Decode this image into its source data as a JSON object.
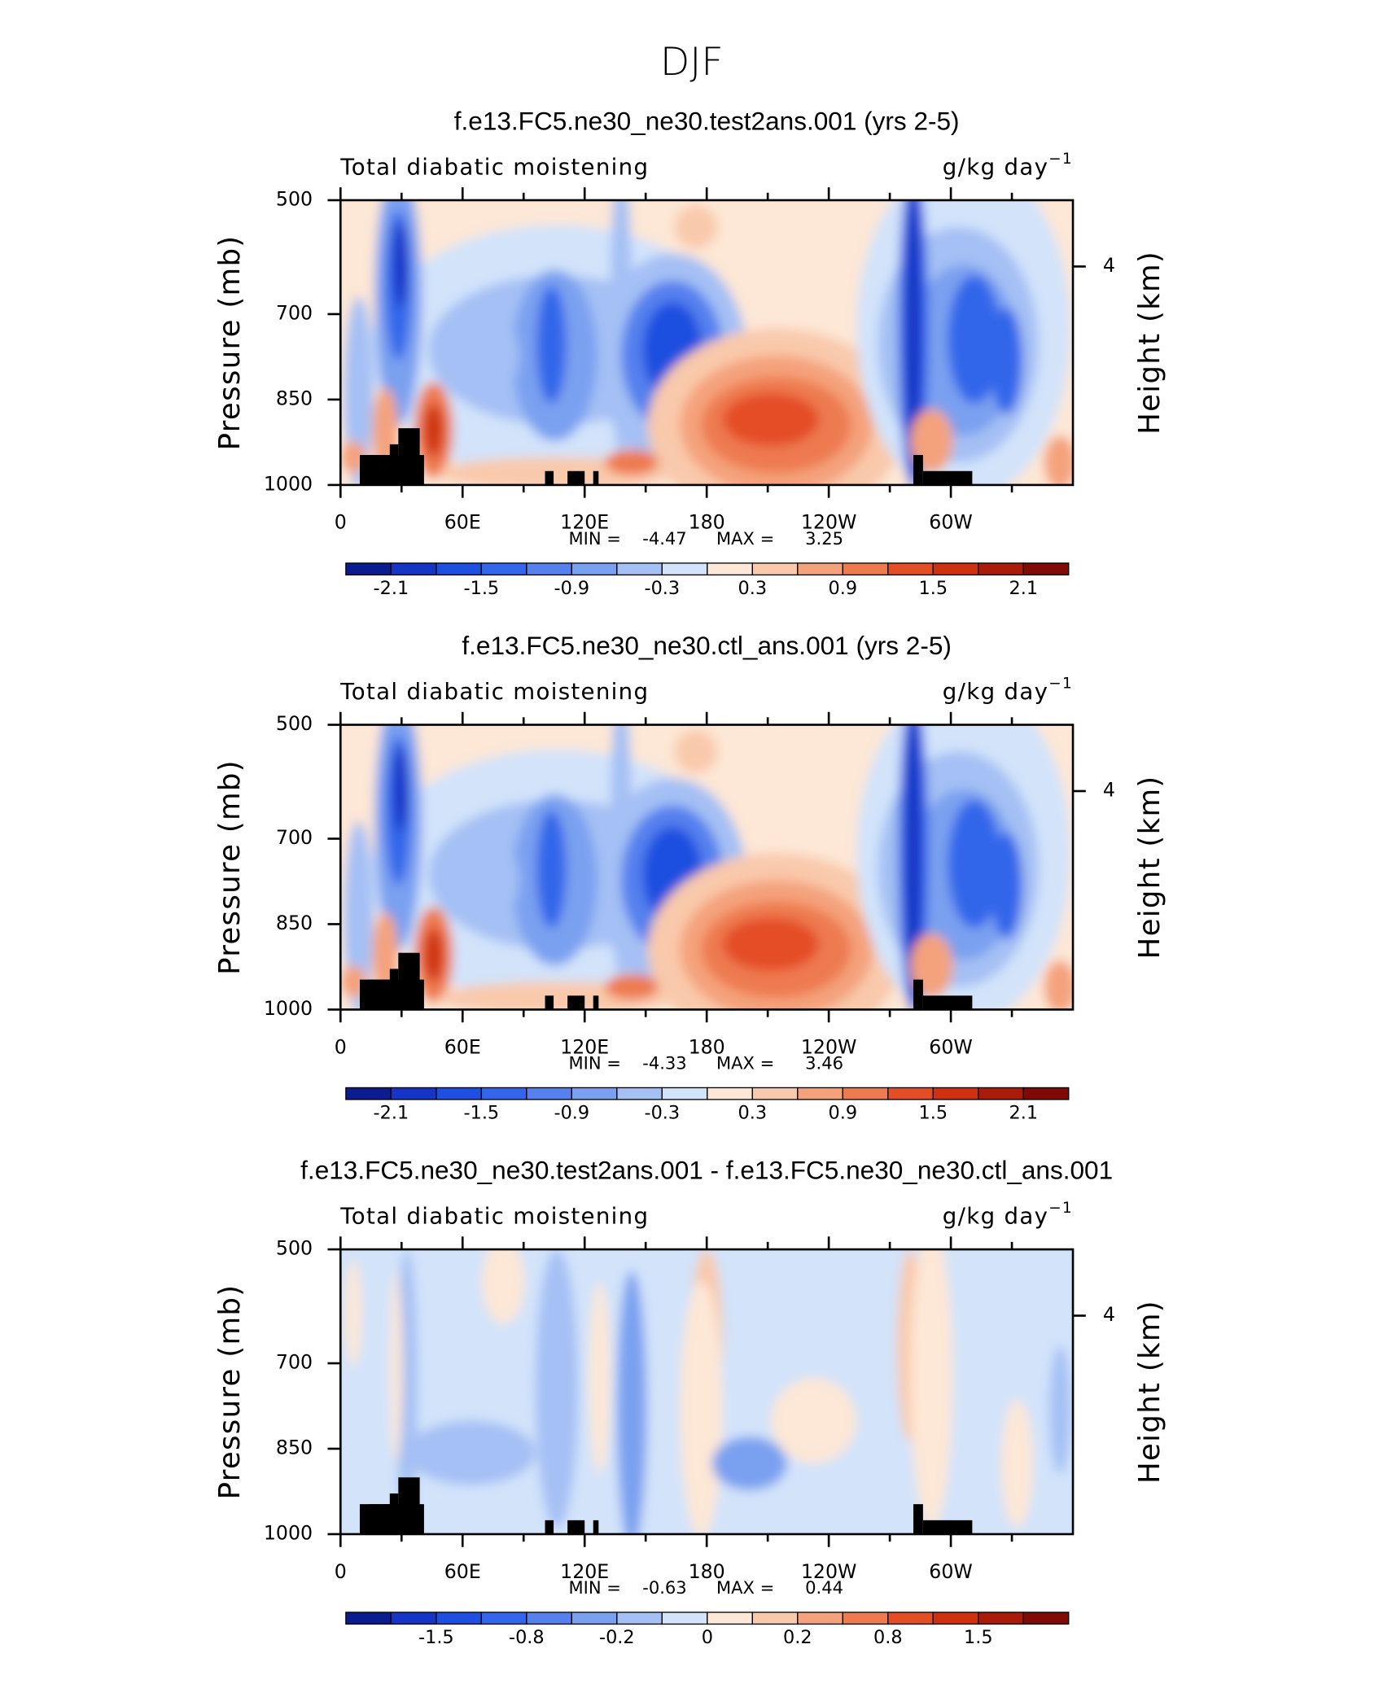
{
  "title": "DJF",
  "colormap": [
    "#0b1c8f",
    "#1535c6",
    "#1e4fe0",
    "#3366ea",
    "#5580ee",
    "#7aa0f0",
    "#a4c0f4",
    "#d2e3fa",
    "#fde7d6",
    "#f9c9ab",
    "#f4a27c",
    "#ee7a4f",
    "#e44e26",
    "#cf3010",
    "#a91c0a",
    "#7f0a06"
  ],
  "chart_data": [
    {
      "type": "contour",
      "title": "f.e13.FC5.ne30_ne30.test2ans.001 (yrs 2-5)",
      "subtitle_left": "Total diabatic moistening",
      "units": "g/kg day",
      "units_exponent": "−1",
      "ylabel": "Pressure (mb)",
      "y2label": "Height (km)",
      "ylim": [
        1000,
        500
      ],
      "yticks": [
        500,
        700,
        850,
        1000
      ],
      "y2ticks": [
        4
      ],
      "xlim": [
        0,
        360
      ],
      "xticks": [
        0,
        {
          "value": 60,
          "label": "60E"
        },
        {
          "value": 120,
          "label": "120E"
        },
        180,
        {
          "value": 240,
          "label": "120W"
        },
        {
          "value": 300,
          "label": "60W"
        }
      ],
      "xminorticks": [
        30,
        90,
        150,
        210,
        270,
        330
      ],
      "min_label": "MIN =",
      "min": -4.47,
      "max_label": "MAX =",
      "max": 3.25,
      "colorbar_levels": [
        -2.1,
        null,
        -1.5,
        null,
        -0.9,
        null,
        -0.3,
        null,
        0.3,
        null,
        0.9,
        null,
        1.5,
        null,
        2.1
      ]
    },
    {
      "type": "contour",
      "title": "f.e13.FC5.ne30_ne30.ctl_ans.001 (yrs 2-5)",
      "subtitle_left": "Total diabatic moistening",
      "units": "g/kg day",
      "units_exponent": "−1",
      "ylabel": "Pressure (mb)",
      "y2label": "Height (km)",
      "ylim": [
        1000,
        500
      ],
      "yticks": [
        500,
        700,
        850,
        1000
      ],
      "y2ticks": [
        4
      ],
      "xlim": [
        0,
        360
      ],
      "xticks": [
        0,
        {
          "value": 60,
          "label": "60E"
        },
        {
          "value": 120,
          "label": "120E"
        },
        180,
        {
          "value": 240,
          "label": "120W"
        },
        {
          "value": 300,
          "label": "60W"
        }
      ],
      "xminorticks": [
        30,
        90,
        150,
        210,
        270,
        330
      ],
      "min_label": "MIN =",
      "min": -4.33,
      "max_label": "MAX =",
      "max": 3.46,
      "colorbar_levels": [
        -2.1,
        null,
        -1.5,
        null,
        -0.9,
        null,
        -0.3,
        null,
        0.3,
        null,
        0.9,
        null,
        1.5,
        null,
        2.1
      ]
    },
    {
      "type": "contour",
      "title": "f.e13.FC5.ne30_ne30.test2ans.001 - f.e13.FC5.ne30_ne30.ctl_ans.001",
      "subtitle_left": "Total diabatic moistening",
      "units": "g/kg day",
      "units_exponent": "−1",
      "ylabel": "Pressure (mb)",
      "y2label": "Height (km)",
      "ylim": [
        1000,
        500
      ],
      "yticks": [
        500,
        700,
        850,
        1000
      ],
      "y2ticks": [
        4
      ],
      "xlim": [
        0,
        360
      ],
      "xticks": [
        0,
        {
          "value": 60,
          "label": "60E"
        },
        {
          "value": 120,
          "label": "120E"
        },
        180,
        {
          "value": 240,
          "label": "120W"
        },
        {
          "value": 300,
          "label": "60W"
        }
      ],
      "xminorticks": [
        30,
        90,
        150,
        210,
        270,
        330
      ],
      "min_label": "MIN =",
      "min": -0.63,
      "max_label": "MAX =",
      "max": 0.44,
      "colorbar_levels": [
        null,
        -1.5,
        null,
        -0.8,
        null,
        -0.2,
        null,
        0,
        null,
        0.2,
        null,
        0.8,
        null,
        1.5,
        null
      ]
    }
  ]
}
